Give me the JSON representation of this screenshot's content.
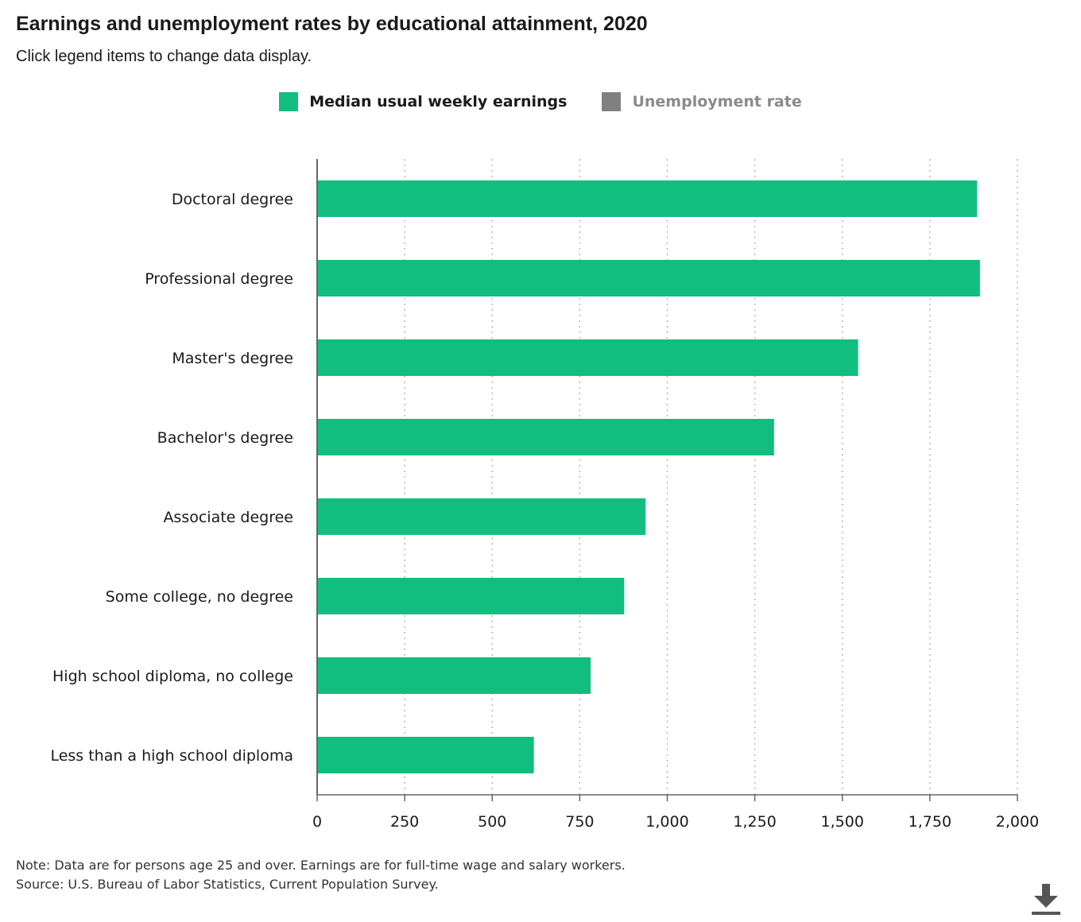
{
  "header": {
    "title": "Earnings and unemployment rates by educational attainment, 2020",
    "subtitle": "Click legend items to change data display."
  },
  "legend": {
    "items": [
      {
        "label": "Median usual weekly earnings",
        "color": "#12be7f",
        "active": true
      },
      {
        "label": "Unemployment rate",
        "color": "#808080",
        "active": false
      }
    ]
  },
  "chart_data": {
    "type": "bar",
    "orientation": "horizontal",
    "categories": [
      "Doctoral degree",
      "Professional degree",
      "Master's degree",
      "Bachelor's degree",
      "Associate degree",
      "Some college, no degree",
      "High school diploma, no college",
      "Less than a high school diploma"
    ],
    "series": [
      {
        "name": "Median usual weekly earnings",
        "color": "#12be7f",
        "values": [
          1885,
          1893,
          1545,
          1305,
          938,
          877,
          781,
          619
        ]
      }
    ],
    "xlim": [
      0,
      2000
    ],
    "xticks": [
      0,
      250,
      500,
      750,
      1000,
      1250,
      1500,
      1750,
      2000
    ],
    "xtick_labels": [
      "0",
      "250",
      "500",
      "750",
      "1,000",
      "1,250",
      "1,500",
      "1,750",
      "2,000"
    ],
    "grid": "vertical dotted"
  },
  "footer": {
    "note": "Note: Data are for persons age 25 and over. Earnings are for full-time wage and salary workers.",
    "source": "Source: U.S. Bureau of Labor Statistics, Current Population Survey."
  },
  "icons": {
    "download": "download-icon"
  }
}
